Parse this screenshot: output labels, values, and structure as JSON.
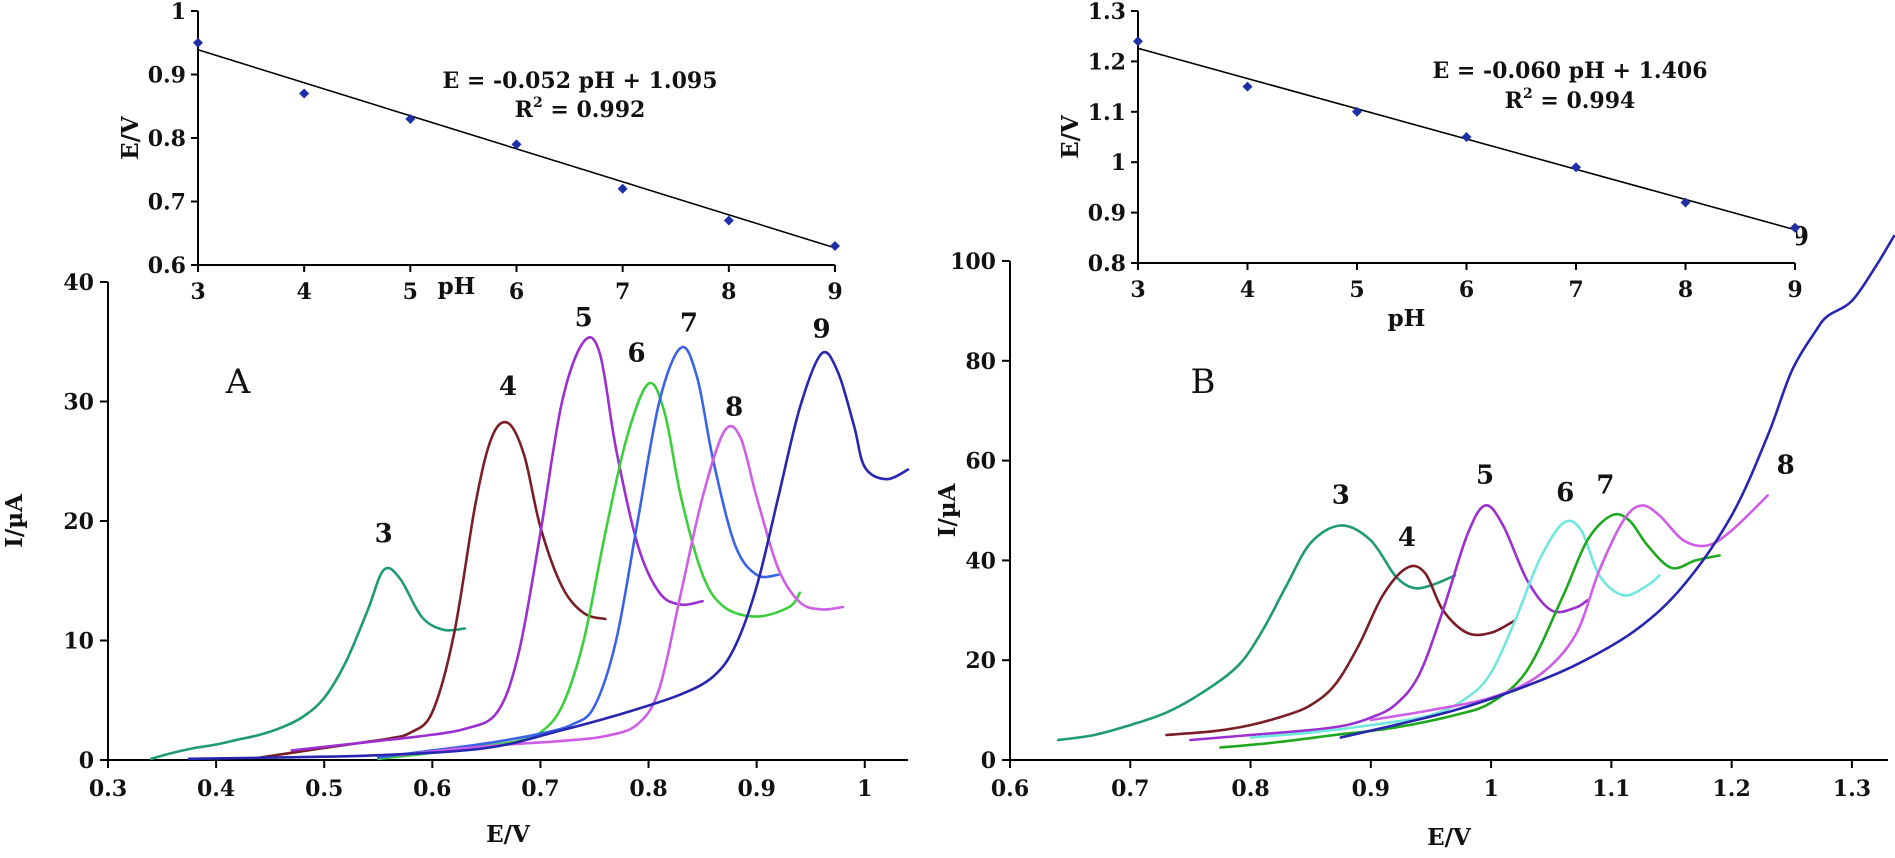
{
  "chart_data": [
    {
      "type": "line",
      "panel": "A",
      "xlabel": "E/V",
      "ylabel": "I/µA",
      "xlim": [
        0.3,
        1.04
      ],
      "ylim": [
        0,
        40
      ],
      "xticks": [
        "0.3",
        "0.4",
        "0.5",
        "0.6",
        "0.7",
        "0.8",
        "0.9",
        "1"
      ],
      "yticks": [
        "0",
        "10",
        "20",
        "30",
        "40"
      ],
      "series": [
        {
          "name": "3",
          "color": "#1e9a74",
          "x": [
            0.34,
            0.36,
            0.38,
            0.4,
            0.42,
            0.44,
            0.46,
            0.48,
            0.5,
            0.52,
            0.54,
            0.555,
            0.57,
            0.59,
            0.61,
            0.63
          ],
          "y": [
            0.1,
            0.6,
            1.0,
            1.3,
            1.7,
            2.1,
            2.7,
            3.6,
            5.2,
            8.2,
            12.5,
            15.9,
            15.2,
            12.0,
            10.9,
            11.0
          ]
        },
        {
          "name": "4",
          "color": "#7a1e26",
          "x": [
            0.44,
            0.47,
            0.5,
            0.53,
            0.56,
            0.58,
            0.6,
            0.62,
            0.64,
            0.655,
            0.67,
            0.685,
            0.7,
            0.72,
            0.74,
            0.76
          ],
          "y": [
            0.2,
            0.6,
            1.0,
            1.4,
            1.8,
            2.3,
            4.0,
            10.5,
            21.5,
            27.0,
            28.2,
            25.5,
            19.5,
            14.5,
            12.3,
            11.8
          ]
        },
        {
          "name": "5",
          "color": "#9b2fcf",
          "x": [
            0.47,
            0.51,
            0.55,
            0.59,
            0.63,
            0.66,
            0.68,
            0.7,
            0.72,
            0.74,
            0.755,
            0.77,
            0.79,
            0.81,
            0.83,
            0.85
          ],
          "y": [
            0.8,
            1.2,
            1.6,
            2.0,
            2.6,
            4.0,
            9.0,
            19.0,
            30.0,
            35.0,
            34.0,
            26.0,
            18.0,
            14.0,
            13.0,
            13.3
          ]
        },
        {
          "name": "6",
          "color": "#3bd03b",
          "x": [
            0.55,
            0.6,
            0.65,
            0.68,
            0.7,
            0.72,
            0.74,
            0.76,
            0.78,
            0.8,
            0.815,
            0.83,
            0.85,
            0.87,
            0.9,
            0.93,
            0.94
          ],
          "y": [
            0.1,
            0.6,
            1.2,
            1.6,
            2.3,
            4.5,
            10.0,
            19.0,
            27.0,
            31.5,
            29.0,
            22.0,
            15.5,
            12.8,
            12.0,
            12.8,
            14.0
          ]
        },
        {
          "name": "7",
          "color": "#3a63e8",
          "x": [
            0.55,
            0.6,
            0.65,
            0.7,
            0.73,
            0.75,
            0.77,
            0.79,
            0.81,
            0.83,
            0.845,
            0.86,
            0.88,
            0.9,
            0.92
          ],
          "y": [
            0.2,
            0.8,
            1.4,
            2.2,
            3.0,
            4.5,
            10.0,
            20.0,
            30.0,
            34.5,
            32.0,
            25.0,
            18.0,
            15.5,
            15.5
          ]
        },
        {
          "name": "8",
          "color": "#cf5ee6",
          "x": [
            0.57,
            0.62,
            0.67,
            0.72,
            0.76,
            0.79,
            0.81,
            0.83,
            0.85,
            0.87,
            0.885,
            0.9,
            0.92,
            0.94,
            0.96,
            0.98
          ],
          "y": [
            0.4,
            0.9,
            1.3,
            1.6,
            2.0,
            3.0,
            6.0,
            14.0,
            22.0,
            27.5,
            27.0,
            22.0,
            16.0,
            13.2,
            12.6,
            12.8
          ]
        },
        {
          "name": "9",
          "color": "#2626b0",
          "x": [
            0.375,
            0.45,
            0.55,
            0.65,
            0.72,
            0.78,
            0.83,
            0.86,
            0.88,
            0.9,
            0.92,
            0.94,
            0.96,
            0.975,
            0.99,
            1.0,
            1.02,
            1.04
          ],
          "y": [
            0.1,
            0.2,
            0.4,
            1.0,
            2.5,
            4.0,
            5.5,
            7.0,
            9.5,
            14.5,
            22.0,
            29.5,
            34.0,
            32.5,
            28.0,
            24.5,
            23.5,
            24.3
          ]
        }
      ],
      "inset": {
        "type": "scatter",
        "xlabel": "pH",
        "ylabel": "E/V",
        "xlim": [
          3,
          9
        ],
        "ylim": [
          0.6,
          1.0
        ],
        "xticks": [
          "3",
          "4",
          "5",
          "6",
          "7",
          "8",
          "9"
        ],
        "yticks": [
          "0.6",
          "0.7",
          "0.8",
          "0.9",
          "1"
        ],
        "points": {
          "x": [
            3,
            4,
            5,
            6,
            7,
            8,
            9
          ],
          "y": [
            0.95,
            0.87,
            0.83,
            0.79,
            0.72,
            0.67,
            0.63
          ]
        },
        "fit": {
          "slope": -0.052,
          "intercept": 1.095
        },
        "equation": "E = -0.052 pH + 1.095",
        "r2_prefix": "R",
        "r2_suffix": " = 0.992"
      }
    },
    {
      "type": "line",
      "panel": "B",
      "xlabel": "E/V",
      "ylabel": "I/µA",
      "xlim": [
        0.6,
        1.33
      ],
      "ylim": [
        0,
        100
      ],
      "xticks": [
        "0.6",
        "0.7",
        "0.8",
        "0.9",
        "1",
        "1.1",
        "1.2",
        "1.3"
      ],
      "yticks": [
        "0",
        "20",
        "40",
        "60",
        "80",
        "100"
      ],
      "series": [
        {
          "name": "3",
          "color": "#1e9a74",
          "x": [
            0.64,
            0.67,
            0.7,
            0.73,
            0.76,
            0.79,
            0.81,
            0.83,
            0.85,
            0.875,
            0.9,
            0.92,
            0.935,
            0.95,
            0.97
          ],
          "y": [
            4.0,
            5.0,
            7.0,
            9.5,
            13.5,
            19.0,
            26.0,
            35.0,
            43.5,
            47.0,
            44.0,
            37.0,
            34.5,
            35.0,
            37.0
          ]
        },
        {
          "name": "4",
          "color": "#7a1e26",
          "x": [
            0.73,
            0.77,
            0.8,
            0.83,
            0.85,
            0.87,
            0.89,
            0.91,
            0.93,
            0.945,
            0.96,
            0.98,
            1.0,
            1.02
          ],
          "y": [
            5.0,
            5.8,
            7.0,
            9.0,
            11.0,
            15.0,
            23.0,
            33.0,
            38.5,
            37.5,
            30.0,
            25.5,
            25.5,
            28.0
          ]
        },
        {
          "name": "5",
          "color": "#9b2fcf",
          "x": [
            0.75,
            0.8,
            0.85,
            0.88,
            0.9,
            0.92,
            0.94,
            0.96,
            0.98,
            0.995,
            1.01,
            1.03,
            1.05,
            1.07,
            1.08
          ],
          "y": [
            4.0,
            5.0,
            6.0,
            7.0,
            8.5,
            11.0,
            17.0,
            30.0,
            45.0,
            51.0,
            47.0,
            36.0,
            30.0,
            30.5,
            32.0
          ]
        },
        {
          "name": "6",
          "color": "#70e8de",
          "x": [
            0.8,
            0.85,
            0.9,
            0.95,
            0.98,
            1.0,
            1.02,
            1.04,
            1.06,
            1.075,
            1.09,
            1.11,
            1.13,
            1.14
          ],
          "y": [
            4.5,
            5.5,
            7.0,
            9.0,
            12.5,
            17.5,
            28.0,
            40.0,
            47.5,
            46.0,
            37.0,
            33.0,
            35.0,
            37.0
          ]
        },
        {
          "name": "7",
          "color": "#1fa81f",
          "x": [
            0.775,
            0.82,
            0.87,
            0.92,
            0.97,
            1.0,
            1.03,
            1.06,
            1.08,
            1.1,
            1.115,
            1.13,
            1.15,
            1.17,
            1.19
          ],
          "y": [
            2.5,
            3.5,
            5.0,
            6.5,
            9.0,
            11.5,
            18.0,
            33.0,
            44.0,
            49.0,
            48.0,
            43.0,
            38.5,
            40.0,
            41.0
          ]
        },
        {
          "name": "8",
          "color": "#cf5ee6",
          "x": [
            0.9,
            0.95,
            1.0,
            1.04,
            1.07,
            1.09,
            1.11,
            1.125,
            1.14,
            1.16,
            1.18,
            1.2,
            1.23
          ],
          "y": [
            8.0,
            10.0,
            12.5,
            17.0,
            25.0,
            38.0,
            48.0,
            51.0,
            49.0,
            44.0,
            43.0,
            46.0,
            53.0
          ]
        },
        {
          "name": "9",
          "color": "#2626b0",
          "x": [
            0.875,
            0.92,
            0.97,
            1.02,
            1.07,
            1.12,
            1.16,
            1.2,
            1.23,
            1.25,
            1.27,
            1.28,
            1.3,
            1.32,
            1.335
          ],
          "y": [
            4.5,
            7.0,
            10.0,
            14.0,
            19.0,
            26.0,
            35.0,
            49.0,
            65.0,
            78.0,
            86.0,
            89.0,
            92.0,
            99.0,
            105.0
          ]
        }
      ],
      "inset": {
        "type": "scatter",
        "xlabel": "pH",
        "ylabel": "E/V",
        "xlim": [
          3,
          9
        ],
        "ylim": [
          0.8,
          1.3
        ],
        "xticks": [
          "3",
          "4",
          "5",
          "6",
          "7",
          "8",
          "9"
        ],
        "yticks": [
          "0.8",
          "0.9",
          "1",
          "1.1",
          "1.2",
          "1.3"
        ],
        "points": {
          "x": [
            3,
            4,
            5,
            6,
            7,
            8,
            9
          ],
          "y": [
            1.24,
            1.15,
            1.1,
            1.05,
            0.99,
            0.92,
            0.87
          ]
        },
        "fit": {
          "slope": -0.06,
          "intercept": 1.406
        },
        "equation": "E = -0.060 pH + 1.406",
        "r2_prefix": "R",
        "r2_suffix": " = 0.994"
      }
    }
  ]
}
